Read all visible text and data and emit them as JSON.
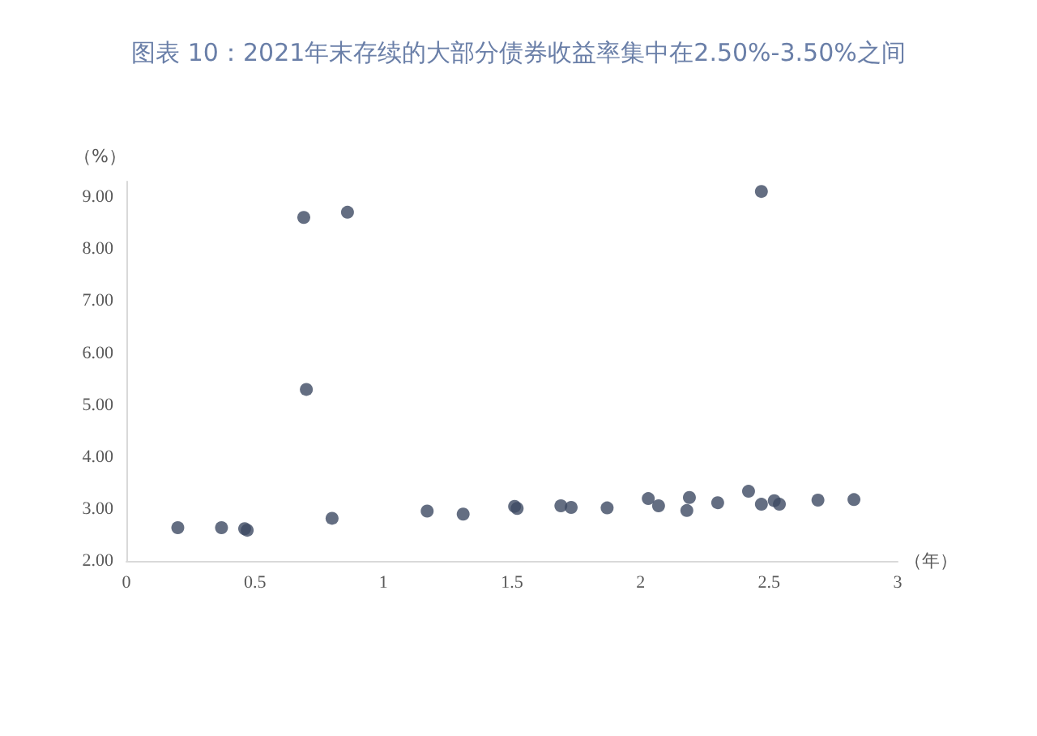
{
  "chart_data": {
    "type": "scatter",
    "title": "图表 10：2021年末存续的大部分债券收益率集中在2.50%-3.50%之间",
    "xlabel": "（年）",
    "ylabel": "（%）",
    "x": [
      0.2,
      0.37,
      0.46,
      0.47,
      0.69,
      0.86,
      0.7,
      0.8,
      1.17,
      1.31,
      1.51,
      1.52,
      1.69,
      1.73,
      1.87,
      2.03,
      2.07,
      2.19,
      2.18,
      2.3,
      2.42,
      2.47,
      2.47,
      2.52,
      2.54,
      2.69,
      2.83
    ],
    "values": [
      2.64,
      2.64,
      2.62,
      2.59,
      8.61,
      8.71,
      5.3,
      2.82,
      2.96,
      2.9,
      3.05,
      3.01,
      3.06,
      3.03,
      3.02,
      3.2,
      3.06,
      3.22,
      2.97,
      3.12,
      3.34,
      3.09,
      9.11,
      3.16,
      3.09,
      3.17,
      3.18
    ],
    "color": "#3d4a63",
    "marker": "circle",
    "xlim": [
      0,
      3
    ],
    "xticks": [
      0,
      0.5,
      1,
      1.5,
      2,
      2.5,
      3
    ],
    "ylim": [
      2,
      9.3
    ],
    "yticks": [
      {
        "value": 2,
        "label": "2.00"
      },
      {
        "value": 3,
        "label": "3.00"
      },
      {
        "value": 4,
        "label": "4.00"
      },
      {
        "value": 5,
        "label": "5.00"
      },
      {
        "value": 6,
        "label": "6.00"
      },
      {
        "value": 7,
        "label": "7.00"
      },
      {
        "value": 8,
        "label": "8.00"
      },
      {
        "value": 9,
        "label": "9.00"
      }
    ],
    "grid": false
  }
}
